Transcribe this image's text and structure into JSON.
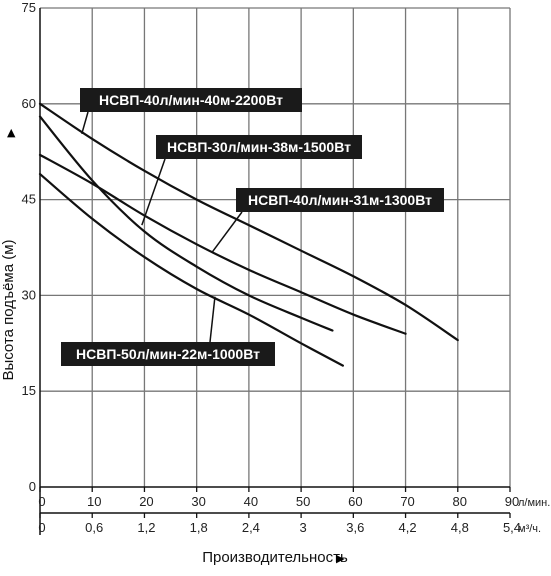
{
  "chart_data": {
    "type": "line",
    "x_unit_primary": "л/мин.",
    "x_unit_secondary": "м³/ч.",
    "ylabel": "Высота подъёма (м)",
    "xlabel": "Производительность",
    "xlim": [
      0,
      90
    ],
    "ylim": [
      0,
      75
    ],
    "y_ticks": [
      "0",
      "15",
      "30",
      "45",
      "60",
      "75"
    ],
    "x_ticks_primary": [
      "0",
      "10",
      "20",
      "30",
      "40",
      "50",
      "60",
      "70",
      "80",
      "90"
    ],
    "x_ticks_secondary": [
      "0",
      "0,6",
      "1,2",
      "1,8",
      "2,4",
      "3",
      "3,6",
      "4,2",
      "4,8",
      "5,4"
    ],
    "grid": true,
    "series": [
      {
        "name": "НСВП-40л/мин-40м-2200Вт",
        "x": [
          0,
          10,
          20,
          30,
          40,
          50,
          60,
          70,
          80
        ],
        "y": [
          60,
          54.5,
          49.5,
          45,
          41,
          37,
          33,
          28.5,
          23
        ]
      },
      {
        "name": "НСВП-30л/мин-38м-1500Вт",
        "x": [
          0,
          10,
          20,
          30,
          40,
          50,
          56
        ],
        "y": [
          58,
          48,
          40,
          34.5,
          30,
          26.5,
          24.5
        ]
      },
      {
        "name": "НСВП-40л/мин-31м-1300Вт",
        "x": [
          0,
          10,
          20,
          30,
          40,
          50,
          60,
          70
        ],
        "y": [
          52,
          47.5,
          42.5,
          38,
          34,
          30.5,
          27,
          24
        ]
      },
      {
        "name": "НСВП-50л/мин-22м-1000Вт",
        "x": [
          0,
          10,
          20,
          30,
          40,
          50,
          58
        ],
        "y": [
          49,
          42,
          36,
          31,
          27,
          22.5,
          19
        ]
      }
    ],
    "labels": [
      {
        "text": "НСВП-40л/мин-40м-2200Вт",
        "series": 0
      },
      {
        "text": "НСВП-30л/мин-38м-1500Вт",
        "series": 1
      },
      {
        "text": "НСВП-40л/мин-31м-1300Вт",
        "series": 2
      },
      {
        "text": "НСВП-50л/мин-22м-1000Вт",
        "series": 3
      }
    ]
  }
}
